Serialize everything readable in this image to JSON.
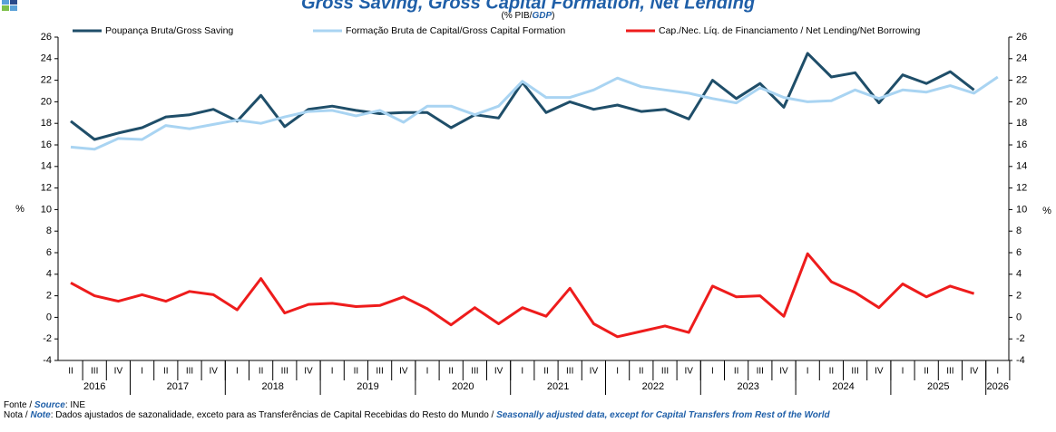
{
  "chart_data": {
    "type": "line",
    "title": "Gross Saving, Gross Capital Formation, Net Lending",
    "subtitle": [
      "(% PIB/",
      "GDP",
      ")"
    ],
    "categories": [
      "II",
      "III",
      "IV",
      "I",
      "II",
      "III",
      "IV",
      "I",
      "II",
      "III",
      "IV",
      "I",
      "II",
      "III",
      "IV",
      "I",
      "II",
      "III",
      "IV",
      "I",
      "II",
      "III",
      "IV",
      "I",
      "II",
      "III",
      "IV",
      "I",
      "II",
      "III",
      "IV",
      "I",
      "II",
      "III",
      "IV",
      "I",
      "II",
      "III",
      "IV",
      "I"
    ],
    "years": [
      "2016",
      "2017",
      "2018",
      "2019",
      "2020",
      "2021",
      "2022",
      "2023",
      "2024",
      "2025",
      "2026"
    ],
    "series": [
      {
        "name": "Poupança Bruta/Gross Saving",
        "color": "#1f4e69",
        "values": [
          18.2,
          16.5,
          17.1,
          17.6,
          18.6,
          18.8,
          19.3,
          18.2,
          20.6,
          17.7,
          19.3,
          19.6,
          19.2,
          18.9,
          19.0,
          19.0,
          17.6,
          18.8,
          18.5,
          21.8,
          19.0,
          20.0,
          19.3,
          19.7,
          19.1,
          19.3,
          18.4,
          22.0,
          20.3,
          21.7,
          19.5,
          24.5,
          22.3,
          22.7,
          19.9,
          22.5,
          21.7,
          22.8,
          21.1,
          null
        ]
      },
      {
        "name": "Formação Bruta de Capital/Gross Capital Formation",
        "color": "#a9d4f2",
        "values": [
          15.8,
          15.6,
          16.6,
          16.5,
          17.8,
          17.5,
          17.9,
          18.3,
          18.0,
          18.6,
          19.1,
          19.2,
          18.7,
          19.2,
          18.1,
          19.6,
          19.6,
          18.8,
          19.6,
          21.9,
          20.4,
          20.4,
          21.1,
          22.2,
          21.4,
          21.1,
          20.8,
          20.3,
          19.9,
          21.3,
          20.4,
          20.0,
          20.1,
          21.1,
          20.3,
          21.1,
          20.9,
          21.5,
          20.8,
          22.3
        ]
      },
      {
        "name": "Cap./Nec. Líq. de Financiamento / Net Lending/Net Borrowing",
        "color": "#ee1c1c",
        "values": [
          3.2,
          2.0,
          1.5,
          2.1,
          1.5,
          2.4,
          2.1,
          0.7,
          3.6,
          0.4,
          1.2,
          1.3,
          1.0,
          1.1,
          1.9,
          0.8,
          -0.7,
          0.9,
          -0.6,
          0.9,
          0.1,
          2.7,
          -0.6,
          -1.8,
          -1.3,
          -0.8,
          -1.4,
          2.9,
          1.9,
          2.0,
          0.1,
          5.9,
          3.3,
          2.3,
          0.9,
          3.1,
          1.9,
          2.9,
          2.2,
          null
        ]
      }
    ],
    "ylim": [
      -4,
      26
    ],
    "yticks": [
      -4,
      -2,
      0,
      2,
      4,
      6,
      8,
      10,
      12,
      14,
      16,
      18,
      20,
      22,
      24,
      26
    ],
    "ylabel": "%",
    "y2label": "%",
    "source": [
      "Fonte / ",
      "Source",
      ":  INE"
    ],
    "note": [
      "Nota / ",
      "Note",
      ": Dados ajustados de sazonalidade, exceto para as Transferências de Capital Recebidas do Resto do Mundo / ",
      "Seasonally adjusted data, except for Capital Transfers from Rest of the World"
    ]
  }
}
